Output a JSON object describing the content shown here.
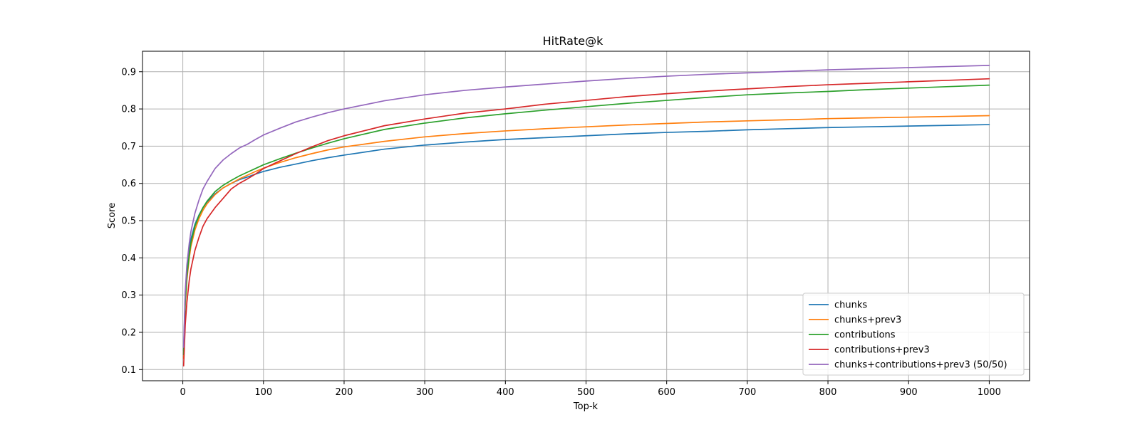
{
  "chart_data": {
    "type": "line",
    "title": "HitRate@k",
    "xlabel": "Top-k",
    "ylabel": "Score",
    "xlim": [
      -50,
      1050
    ],
    "ylim": [
      0.07,
      0.955
    ],
    "xticks": [
      0,
      100,
      200,
      300,
      400,
      500,
      600,
      700,
      800,
      900,
      1000
    ],
    "yticks": [
      0.1,
      0.2,
      0.3,
      0.4,
      0.5,
      0.6,
      0.7,
      0.8,
      0.9
    ],
    "grid": true,
    "legend_position": "lower-right",
    "x": [
      1,
      3,
      5,
      8,
      10,
      15,
      20,
      25,
      30,
      40,
      50,
      60,
      70,
      80,
      90,
      100,
      120,
      140,
      160,
      180,
      200,
      250,
      300,
      350,
      400,
      450,
      500,
      550,
      600,
      650,
      700,
      750,
      800,
      850,
      900,
      950,
      1000
    ],
    "series": [
      {
        "name": "chunks",
        "color": "#1f77b4",
        "values": [
          0.15,
          0.3,
          0.37,
          0.42,
          0.45,
          0.49,
          0.515,
          0.535,
          0.55,
          0.572,
          0.588,
          0.6,
          0.61,
          0.617,
          0.625,
          0.632,
          0.643,
          0.652,
          0.661,
          0.669,
          0.676,
          0.692,
          0.703,
          0.711,
          0.718,
          0.723,
          0.728,
          0.733,
          0.737,
          0.74,
          0.744,
          0.747,
          0.75,
          0.752,
          0.754,
          0.756,
          0.758
        ]
      },
      {
        "name": "chunks+prev3",
        "color": "#ff7f0e",
        "values": [
          0.13,
          0.27,
          0.34,
          0.4,
          0.43,
          0.475,
          0.505,
          0.528,
          0.545,
          0.57,
          0.588,
          0.6,
          0.612,
          0.622,
          0.632,
          0.641,
          0.656,
          0.669,
          0.68,
          0.69,
          0.698,
          0.713,
          0.725,
          0.734,
          0.741,
          0.747,
          0.752,
          0.757,
          0.761,
          0.765,
          0.768,
          0.771,
          0.774,
          0.776,
          0.778,
          0.78,
          0.782
        ]
      },
      {
        "name": "contributions",
        "color": "#2ca02c",
        "values": [
          0.14,
          0.28,
          0.35,
          0.41,
          0.44,
          0.485,
          0.513,
          0.535,
          0.552,
          0.578,
          0.595,
          0.608,
          0.62,
          0.63,
          0.64,
          0.65,
          0.666,
          0.681,
          0.695,
          0.708,
          0.72,
          0.745,
          0.762,
          0.776,
          0.787,
          0.797,
          0.806,
          0.815,
          0.823,
          0.831,
          0.838,
          0.843,
          0.847,
          0.852,
          0.856,
          0.86,
          0.864
        ]
      },
      {
        "name": "contributions+prev3",
        "color": "#d62728",
        "values": [
          0.11,
          0.22,
          0.28,
          0.34,
          0.37,
          0.42,
          0.455,
          0.485,
          0.505,
          0.535,
          0.56,
          0.585,
          0.6,
          0.612,
          0.625,
          0.64,
          0.66,
          0.68,
          0.698,
          0.715,
          0.728,
          0.755,
          0.773,
          0.789,
          0.8,
          0.813,
          0.823,
          0.833,
          0.841,
          0.848,
          0.854,
          0.86,
          0.865,
          0.869,
          0.873,
          0.877,
          0.881
        ]
      },
      {
        "name": "chunks+contributions+prev3 (50/50)",
        "color": "#9467bd",
        "values": [
          0.16,
          0.31,
          0.38,
          0.44,
          0.47,
          0.52,
          0.555,
          0.585,
          0.605,
          0.64,
          0.663,
          0.68,
          0.695,
          0.705,
          0.718,
          0.73,
          0.748,
          0.765,
          0.778,
          0.79,
          0.8,
          0.822,
          0.838,
          0.85,
          0.859,
          0.867,
          0.875,
          0.882,
          0.888,
          0.893,
          0.897,
          0.901,
          0.905,
          0.908,
          0.911,
          0.914,
          0.917
        ]
      }
    ]
  }
}
